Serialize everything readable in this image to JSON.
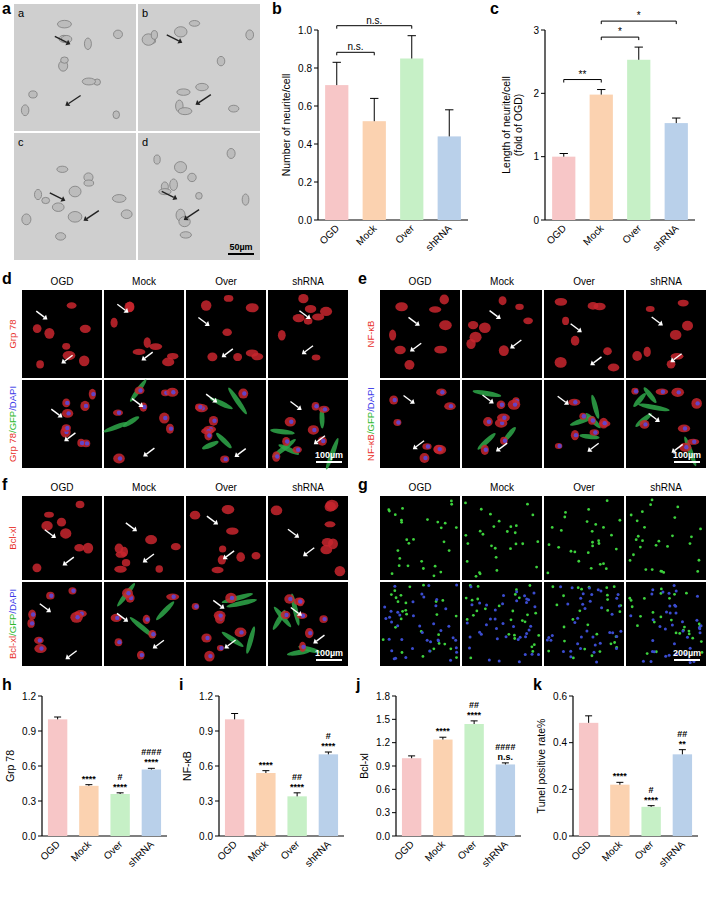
{
  "image_panels": [
    {
      "panel_label": "a",
      "sub_labels": [
        "a",
        "b",
        "c",
        "d"
      ],
      "scale_bar": "50µm"
    },
    {
      "panel_label": "d",
      "columns": [
        "OGD",
        "Mock",
        "Over",
        "shRNA"
      ],
      "rows": [
        [
          {
            "text": "Grp 78",
            "color": "#e8302a"
          }
        ],
        [
          {
            "text": "Grp 78",
            "color": "#e8302a"
          },
          {
            "text": "/GFP",
            "color": "#2eb82e"
          },
          {
            "text": "/DAPI",
            "color": "#3a3ae8"
          }
        ]
      ],
      "scale_bar": "100µm"
    },
    {
      "panel_label": "e",
      "columns": [
        "OGD",
        "Mock",
        "Over",
        "shRNA"
      ],
      "rows": [
        [
          {
            "text": "NF-κB",
            "color": "#e8302a"
          }
        ],
        [
          {
            "text": "NF-κB",
            "color": "#e8302a"
          },
          {
            "text": "/GFP",
            "color": "#2eb82e"
          },
          {
            "text": "/DAPI",
            "color": "#3a3ae8"
          }
        ]
      ],
      "scale_bar": "100µm"
    },
    {
      "panel_label": "f",
      "columns": [
        "OGD",
        "Mock",
        "Over",
        "shRNA"
      ],
      "rows": [
        [
          {
            "text": "Bcl-xl",
            "color": "#e8302a"
          }
        ],
        [
          {
            "text": "Bcl-xl",
            "color": "#e8302a"
          },
          {
            "text": "/GFP",
            "color": "#2eb82e"
          },
          {
            "text": "/DAPI",
            "color": "#3a3ae8"
          }
        ]
      ],
      "scale_bar": "100µm"
    },
    {
      "panel_label": "g",
      "columns": [
        "OGD",
        "Mock",
        "Over",
        "shRNA"
      ],
      "scale_bar": "200µm"
    }
  ],
  "chart_data": [
    {
      "type": "bar",
      "panel_label": "b",
      "y_label": "Number of neurite/cell",
      "categories": [
        "OGD",
        "Mock",
        "Over",
        "shRNA"
      ],
      "values": [
        0.71,
        0.52,
        0.85,
        0.44
      ],
      "errors": [
        0.12,
        0.12,
        0.12,
        0.14
      ],
      "colors": [
        "#f7c6c7",
        "#fbd2b0",
        "#c6f0c6",
        "#b9d0ea"
      ],
      "ylim": [
        0,
        1
      ],
      "yticks": [
        {
          "value": 0,
          "label": "0.0"
        },
        {
          "value": 0.2,
          "label": "0.2"
        },
        {
          "value": 0.4,
          "label": "0.4"
        },
        {
          "value": 0.6,
          "label": "0.6"
        },
        {
          "value": 0.8,
          "label": "0.8"
        },
        {
          "value": 1,
          "label": "1.0"
        }
      ],
      "brackets": [
        {
          "from": 0,
          "to": 1,
          "text": "n.s."
        },
        {
          "from": 0,
          "to": 2,
          "text": "n.s."
        }
      ]
    },
    {
      "type": "bar",
      "panel_label": "c",
      "y_label": [
        "Length of neurite/cell",
        "(fold of OGD)"
      ],
      "categories": [
        "OGD",
        "Mock",
        "Over",
        "shRNA"
      ],
      "values": [
        1.0,
        1.98,
        2.53,
        1.53
      ],
      "errors": [
        0.05,
        0.08,
        0.2,
        0.08
      ],
      "colors": [
        "#f7c6c7",
        "#fbd2b0",
        "#c6f0c6",
        "#b9d0ea"
      ],
      "ylim": [
        0,
        3
      ],
      "yticks": [
        0,
        1,
        2,
        3
      ],
      "brackets": [
        {
          "from": 0,
          "to": 1,
          "text": "**"
        },
        {
          "from": 1,
          "to": 2,
          "text": "*"
        },
        {
          "from": 1,
          "to": 3,
          "text": "*"
        }
      ]
    },
    {
      "type": "bar",
      "panel_label": "h",
      "y_label": "Grp 78",
      "categories": [
        "OGD",
        "Mock",
        "Over",
        "shRNA"
      ],
      "values": [
        1.0,
        0.43,
        0.36,
        0.57
      ],
      "errors": [
        0.02,
        0.01,
        0.01,
        0.01
      ],
      "colors": [
        "#f7c6c7",
        "#fbd2b0",
        "#c6f0c6",
        "#b9d0ea"
      ],
      "ylim": [
        0,
        1.2
      ],
      "yticks": [
        {
          "value": 0,
          "label": "0.0"
        },
        {
          "value": 0.3,
          "label": "0.3"
        },
        {
          "value": 0.6,
          "label": "0.6"
        },
        {
          "value": 0.9,
          "label": "0.9"
        },
        {
          "value": 1.2,
          "label": "1.2"
        }
      ],
      "annotations": [
        {
          "index": 1,
          "lines": [
            "****"
          ]
        },
        {
          "index": 2,
          "lines": [
            "#",
            "****"
          ]
        },
        {
          "index": 3,
          "lines": [
            "####",
            "****"
          ]
        }
      ]
    },
    {
      "type": "bar",
      "panel_label": "i",
      "y_label": "NF-κB",
      "categories": [
        "OGD",
        "Mock",
        "Over",
        "shRNA"
      ],
      "values": [
        1.0,
        0.54,
        0.34,
        0.7
      ],
      "errors": [
        0.05,
        0.02,
        0.03,
        0.02
      ],
      "colors": [
        "#f7c6c7",
        "#fbd2b0",
        "#c6f0c6",
        "#b9d0ea"
      ],
      "ylim": [
        0,
        1.2
      ],
      "yticks": [
        {
          "value": 0,
          "label": "0.0"
        },
        {
          "value": 0.3,
          "label": "0.3"
        },
        {
          "value": 0.6,
          "label": "0.6"
        },
        {
          "value": 0.9,
          "label": "0.9"
        },
        {
          "value": 1.2,
          "label": "1.2"
        }
      ],
      "annotations": [
        {
          "index": 1,
          "lines": [
            "****"
          ]
        },
        {
          "index": 2,
          "lines": [
            "##",
            "****"
          ]
        },
        {
          "index": 3,
          "lines": [
            "#",
            "****"
          ]
        }
      ]
    },
    {
      "type": "bar",
      "panel_label": "j",
      "y_label": "Bcl-xl",
      "categories": [
        "OGD",
        "Mock",
        "Over",
        "shRNA"
      ],
      "values": [
        1.0,
        1.24,
        1.44,
        0.92
      ],
      "errors": [
        0.03,
        0.03,
        0.04,
        0.02
      ],
      "colors": [
        "#f7c6c7",
        "#fbd2b0",
        "#c6f0c6",
        "#b9d0ea"
      ],
      "ylim": [
        0,
        1.8
      ],
      "yticks": [
        {
          "value": 0,
          "label": "0.0"
        },
        {
          "value": 0.3,
          "label": "0.3"
        },
        {
          "value": 0.6,
          "label": "0.6"
        },
        {
          "value": 0.9,
          "label": "0.9"
        },
        {
          "value": 1.2,
          "label": "1.2"
        },
        {
          "value": 1.5,
          "label": "1.5"
        },
        {
          "value": 1.8,
          "label": "1.8"
        }
      ],
      "annotations": [
        {
          "index": 1,
          "lines": [
            "****"
          ]
        },
        {
          "index": 2,
          "lines": [
            "##",
            "****"
          ]
        },
        {
          "index": 3,
          "lines": [
            "####",
            "n.s."
          ]
        }
      ]
    },
    {
      "type": "bar",
      "panel_label": "k",
      "y_label": "Tunel positive rate%",
      "categories": [
        "OGD",
        "Mock",
        "Over",
        "shRNA"
      ],
      "values": [
        0.485,
        0.22,
        0.125,
        0.35
      ],
      "errors": [
        0.03,
        0.01,
        0.005,
        0.02
      ],
      "colors": [
        "#f7c6c7",
        "#fbd2b0",
        "#c6f0c6",
        "#b9d0ea"
      ],
      "ylim": [
        0,
        0.6
      ],
      "yticks": [
        {
          "value": 0,
          "label": "0.0"
        },
        {
          "value": 0.2,
          "label": "0.2"
        },
        {
          "value": 0.4,
          "label": "0.4"
        },
        {
          "value": 0.6,
          "label": "0.6"
        }
      ],
      "annotations": [
        {
          "index": 1,
          "lines": [
            "****"
          ]
        },
        {
          "index": 2,
          "lines": [
            "#",
            "****"
          ]
        },
        {
          "index": 3,
          "lines": [
            "##",
            "**"
          ]
        }
      ]
    }
  ]
}
